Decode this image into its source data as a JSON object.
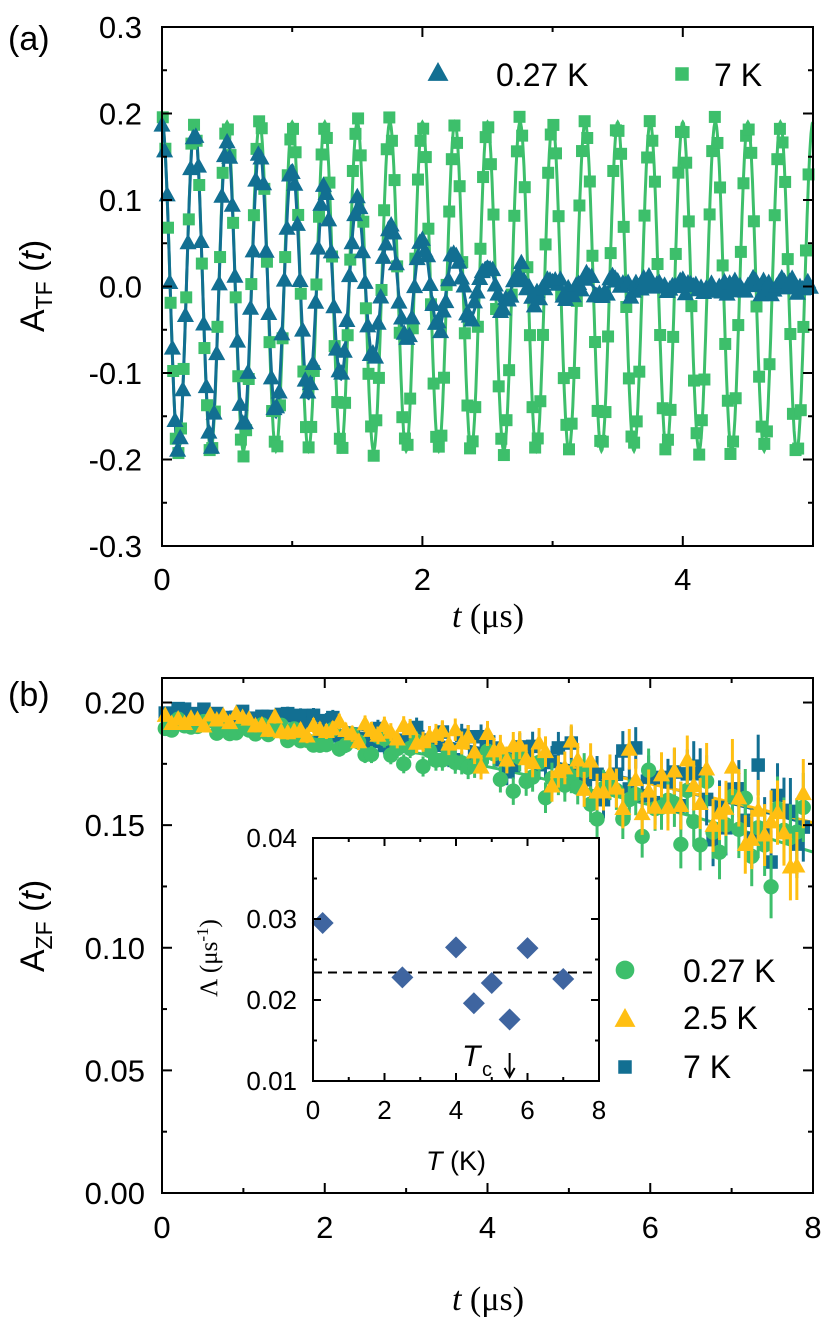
{
  "colors": {
    "teal": "#126f92",
    "green": "#3dbf6b",
    "yellow": "#ffbf12",
    "diamond": "#3f65a0",
    "axis": "#000000"
  },
  "chart_data": [
    {
      "panel_label": "(a)",
      "type": "scatter",
      "xlabel": "t (μs)",
      "ylabel": "A_TF (t)",
      "xlim": [
        0,
        5
      ],
      "ylim": [
        -0.3,
        0.3
      ],
      "xticks": [
        "0",
        "2",
        "4"
      ],
      "yticks": [
        "-0.3",
        "-0.2",
        "-0.1",
        "0.0",
        "0.1",
        "0.2",
        "0.3"
      ],
      "legend_position": "top-right",
      "oscillation_frequency_mhz": 4.0,
      "series": [
        {
          "name": "0.27 K",
          "marker": "triangle",
          "color": "teal",
          "amplitude": 0.19,
          "gaussian_relaxation_per_us": 0.78,
          "fit_line": true
        },
        {
          "name": "7 K",
          "marker": "square",
          "color": "green",
          "amplitude": 0.19,
          "gaussian_relaxation_per_us": 0.0,
          "fit_line": true
        }
      ]
    },
    {
      "panel_label": "(b)",
      "type": "scatter",
      "xlabel": "t (μs)",
      "ylabel": "A_ZF (t)",
      "xlim": [
        0,
        8
      ],
      "ylim": [
        0,
        0.21
      ],
      "xticks": [
        "0",
        "2",
        "4",
        "6",
        "8"
      ],
      "yticks": [
        "0.00",
        "0.05",
        "0.10",
        "0.15",
        "0.20"
      ],
      "legend_position": "bottom-right",
      "series": [
        {
          "name": "0.27 K",
          "marker": "circle",
          "color": "green",
          "start": 0.191,
          "end": 0.139
        },
        {
          "name": "2.5 K",
          "marker": "triangle",
          "color": "yellow",
          "start": 0.194,
          "end": 0.151
        },
        {
          "name": "7 K",
          "marker": "square",
          "color": "teal",
          "start": 0.196,
          "end": 0.15
        }
      ]
    },
    {
      "panel_label": "inset",
      "type": "scatter",
      "xlabel": "T (K)",
      "ylabel": "Λ (μs⁻¹)",
      "xlim": [
        0,
        8
      ],
      "ylim": [
        0.01,
        0.04
      ],
      "xticks": [
        "0",
        "2",
        "4",
        "6",
        "8"
      ],
      "yticks": [
        "0.01",
        "0.02",
        "0.03",
        "0.04"
      ],
      "x": [
        0.27,
        2.5,
        4.0,
        4.5,
        5.0,
        5.5,
        6.0,
        7.0
      ],
      "y": [
        0.0295,
        0.0228,
        0.0265,
        0.0196,
        0.0221,
        0.0176,
        0.0264,
        0.0226
      ],
      "mean_line": 0.0234,
      "annotation": {
        "label": "T",
        "subscript": "c",
        "x": 5.5,
        "arrow": "down"
      }
    }
  ]
}
